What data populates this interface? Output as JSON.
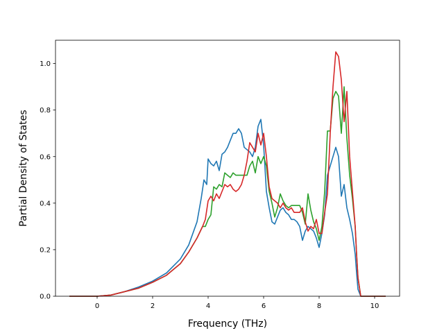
{
  "chart_data": {
    "type": "line",
    "title": "",
    "xlabel": "Frequency (THz)",
    "ylabel": "Partial Density of States",
    "xlim": [
      -1.5,
      10.9
    ],
    "ylim": [
      0.0,
      1.1
    ],
    "xticks": [
      0,
      2,
      4,
      6,
      8,
      10
    ],
    "yticks": [
      0.0,
      0.2,
      0.4,
      0.6,
      0.8,
      1.0
    ],
    "xtick_labels": [
      "0",
      "2",
      "4",
      "6",
      "8",
      "10"
    ],
    "ytick_labels": [
      "0.0",
      "0.2",
      "0.4",
      "0.6",
      "0.8",
      "1.0"
    ],
    "grid": false,
    "legend": "none",
    "series": [
      {
        "color": "#1f77b4",
        "x": [
          -1.0,
          0.0,
          0.5,
          1.0,
          1.5,
          2.0,
          2.5,
          3.0,
          3.3,
          3.6,
          3.75,
          3.85,
          3.95,
          4.0,
          4.1,
          4.2,
          4.3,
          4.4,
          4.5,
          4.6,
          4.7,
          4.8,
          4.9,
          5.0,
          5.1,
          5.2,
          5.3,
          5.4,
          5.5,
          5.6,
          5.7,
          5.8,
          5.9,
          6.0,
          6.1,
          6.2,
          6.3,
          6.4,
          6.5,
          6.6,
          6.7,
          6.8,
          6.9,
          7.0,
          7.1,
          7.2,
          7.3,
          7.4,
          7.5,
          7.6,
          7.7,
          7.8,
          7.9,
          8.0,
          8.1,
          8.2,
          8.3,
          8.4,
          8.5,
          8.6,
          8.7,
          8.8,
          8.9,
          9.0,
          9.1,
          9.2,
          9.3,
          9.35,
          9.4,
          9.5,
          10.4
        ],
        "y": [
          0.0,
          0.0,
          0.005,
          0.02,
          0.04,
          0.065,
          0.1,
          0.16,
          0.22,
          0.32,
          0.42,
          0.5,
          0.48,
          0.59,
          0.57,
          0.56,
          0.58,
          0.54,
          0.61,
          0.62,
          0.64,
          0.67,
          0.7,
          0.7,
          0.72,
          0.7,
          0.64,
          0.63,
          0.62,
          0.6,
          0.64,
          0.73,
          0.76,
          0.65,
          0.45,
          0.38,
          0.32,
          0.31,
          0.34,
          0.37,
          0.38,
          0.36,
          0.35,
          0.33,
          0.33,
          0.32,
          0.3,
          0.24,
          0.28,
          0.3,
          0.29,
          0.28,
          0.25,
          0.21,
          0.27,
          0.35,
          0.52,
          0.56,
          0.6,
          0.64,
          0.6,
          0.43,
          0.48,
          0.38,
          0.33,
          0.27,
          0.18,
          0.1,
          0.03,
          0.0,
          0.0
        ]
      },
      {
        "color": "#2ca02c",
        "x": [
          -1.0,
          0.0,
          0.5,
          1.0,
          1.5,
          2.0,
          2.5,
          3.0,
          3.3,
          3.6,
          3.8,
          3.9,
          4.0,
          4.1,
          4.2,
          4.3,
          4.4,
          4.5,
          4.6,
          4.7,
          4.8,
          4.9,
          5.0,
          5.1,
          5.2,
          5.3,
          5.4,
          5.5,
          5.6,
          5.7,
          5.8,
          5.9,
          6.0,
          6.1,
          6.2,
          6.3,
          6.4,
          6.5,
          6.6,
          6.7,
          6.8,
          6.9,
          7.0,
          7.1,
          7.2,
          7.3,
          7.4,
          7.5,
          7.6,
          7.7,
          7.8,
          7.9,
          8.0,
          8.1,
          8.2,
          8.3,
          8.4,
          8.5,
          8.6,
          8.7,
          8.8,
          8.9,
          9.0,
          9.1,
          9.2,
          9.3,
          9.35,
          9.4,
          9.5,
          10.4
        ],
        "y": [
          0.0,
          0.0,
          0.005,
          0.02,
          0.035,
          0.06,
          0.09,
          0.14,
          0.19,
          0.25,
          0.3,
          0.3,
          0.33,
          0.35,
          0.47,
          0.46,
          0.48,
          0.47,
          0.53,
          0.52,
          0.51,
          0.53,
          0.52,
          0.52,
          0.52,
          0.52,
          0.52,
          0.56,
          0.58,
          0.53,
          0.6,
          0.57,
          0.6,
          0.56,
          0.45,
          0.4,
          0.34,
          0.38,
          0.44,
          0.41,
          0.39,
          0.38,
          0.39,
          0.39,
          0.39,
          0.39,
          0.36,
          0.31,
          0.44,
          0.37,
          0.32,
          0.29,
          0.24,
          0.3,
          0.45,
          0.71,
          0.71,
          0.85,
          0.88,
          0.86,
          0.7,
          0.9,
          0.68,
          0.52,
          0.42,
          0.3,
          0.18,
          0.08,
          0.0,
          0.0
        ]
      },
      {
        "color": "#d62728",
        "x": [
          -1.0,
          0.0,
          0.5,
          1.0,
          1.5,
          2.0,
          2.5,
          3.0,
          3.3,
          3.6,
          3.8,
          3.9,
          4.0,
          4.1,
          4.2,
          4.3,
          4.4,
          4.5,
          4.6,
          4.7,
          4.8,
          4.9,
          5.0,
          5.1,
          5.2,
          5.3,
          5.4,
          5.5,
          5.6,
          5.7,
          5.8,
          5.9,
          6.0,
          6.1,
          6.2,
          6.3,
          6.4,
          6.5,
          6.6,
          6.7,
          6.8,
          6.9,
          7.0,
          7.1,
          7.2,
          7.3,
          7.4,
          7.5,
          7.6,
          7.7,
          7.8,
          7.9,
          8.0,
          8.1,
          8.2,
          8.3,
          8.4,
          8.5,
          8.6,
          8.7,
          8.8,
          8.9,
          9.0,
          9.1,
          9.2,
          9.3,
          9.35,
          9.4,
          9.5,
          10.4
        ],
        "y": [
          0.0,
          0.0,
          0.005,
          0.02,
          0.035,
          0.06,
          0.09,
          0.14,
          0.19,
          0.25,
          0.3,
          0.33,
          0.41,
          0.43,
          0.41,
          0.44,
          0.42,
          0.45,
          0.48,
          0.47,
          0.48,
          0.46,
          0.45,
          0.46,
          0.48,
          0.52,
          0.58,
          0.66,
          0.64,
          0.62,
          0.7,
          0.65,
          0.7,
          0.6,
          0.47,
          0.42,
          0.41,
          0.4,
          0.38,
          0.4,
          0.38,
          0.37,
          0.38,
          0.36,
          0.36,
          0.36,
          0.38,
          0.32,
          0.28,
          0.3,
          0.29,
          0.33,
          0.27,
          0.27,
          0.36,
          0.44,
          0.7,
          0.9,
          1.05,
          1.03,
          0.93,
          0.75,
          0.88,
          0.6,
          0.45,
          0.3,
          0.18,
          0.08,
          0.0,
          0.0
        ]
      }
    ]
  }
}
